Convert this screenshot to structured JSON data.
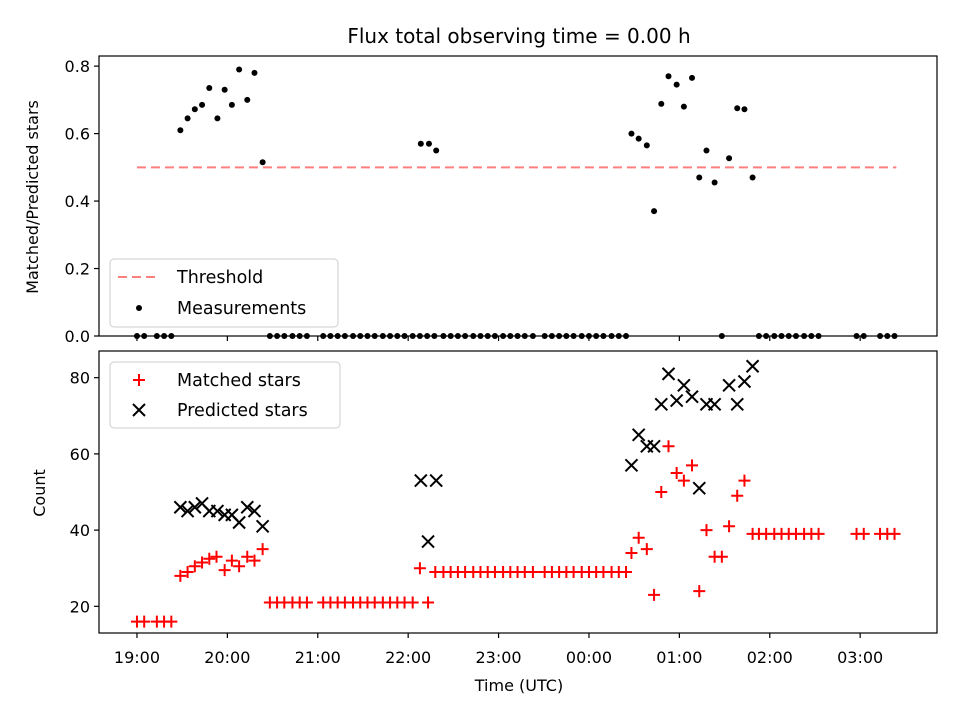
{
  "chart_data": {
    "title": "Flux total observing time = 0.00 h",
    "xlabel": "Time (UTC)",
    "x_ticks": [
      "19:00",
      "20:00",
      "21:00",
      "22:00",
      "23:00",
      "00:00",
      "01:00",
      "02:00",
      "03:00"
    ],
    "x_range_hours_from_19": [
      -0.42,
      8.85
    ],
    "top": {
      "type": "scatter",
      "ylabel": "Matched/Predicted stars",
      "ylim": [
        0,
        0.83
      ],
      "y_ticks": [
        "0.0",
        "0.2",
        "0.4",
        "0.6",
        "0.8"
      ],
      "threshold": {
        "name": "Threshold",
        "value": 0.5,
        "x_start": 0.0,
        "x_end": 8.4,
        "color": "#ff7f7f"
      },
      "measurements_name": "Measurements",
      "points": [
        [
          0.0,
          0
        ],
        [
          0.08,
          0
        ],
        [
          0.22,
          0
        ],
        [
          0.3,
          0
        ],
        [
          0.38,
          0
        ],
        [
          0.48,
          0.61
        ],
        [
          0.56,
          0.645
        ],
        [
          0.64,
          0.672
        ],
        [
          0.72,
          0.685
        ],
        [
          0.8,
          0.735
        ],
        [
          0.89,
          0.645
        ],
        [
          0.97,
          0.73
        ],
        [
          1.05,
          0.685
        ],
        [
          1.13,
          0.79
        ],
        [
          1.22,
          0.7
        ],
        [
          1.3,
          0.78
        ],
        [
          1.39,
          0.515
        ],
        [
          1.47,
          0
        ],
        [
          1.55,
          0
        ],
        [
          1.63,
          0
        ],
        [
          1.72,
          0
        ],
        [
          1.8,
          0
        ],
        [
          1.88,
          0
        ],
        [
          2.06,
          0
        ],
        [
          2.14,
          0
        ],
        [
          2.22,
          0
        ],
        [
          2.3,
          0
        ],
        [
          2.39,
          0
        ],
        [
          2.47,
          0
        ],
        [
          2.55,
          0
        ],
        [
          2.63,
          0
        ],
        [
          2.72,
          0
        ],
        [
          2.8,
          0
        ],
        [
          2.88,
          0
        ],
        [
          2.96,
          0
        ],
        [
          3.05,
          0
        ],
        [
          3.13,
          0
        ],
        [
          3.21,
          0
        ],
        [
          3.29,
          0
        ],
        [
          3.14,
          0.57
        ],
        [
          3.23,
          0.57
        ],
        [
          3.31,
          0.55
        ],
        [
          3.39,
          0
        ],
        [
          3.47,
          0
        ],
        [
          3.55,
          0
        ],
        [
          3.63,
          0
        ],
        [
          3.72,
          0
        ],
        [
          3.8,
          0
        ],
        [
          3.88,
          0
        ],
        [
          3.96,
          0
        ],
        [
          4.05,
          0
        ],
        [
          4.13,
          0
        ],
        [
          4.21,
          0
        ],
        [
          4.29,
          0
        ],
        [
          4.38,
          0
        ],
        [
          4.51,
          0
        ],
        [
          4.59,
          0
        ],
        [
          4.67,
          0
        ],
        [
          4.75,
          0
        ],
        [
          4.83,
          0
        ],
        [
          4.92,
          0
        ],
        [
          5.0,
          0
        ],
        [
          5.08,
          0
        ],
        [
          5.16,
          0
        ],
        [
          5.25,
          0
        ],
        [
          5.33,
          0
        ],
        [
          5.41,
          0
        ],
        [
          5.47,
          0.6
        ],
        [
          5.55,
          0.585
        ],
        [
          5.64,
          0.565
        ],
        [
          5.72,
          0.37
        ],
        [
          5.8,
          0.688
        ],
        [
          5.88,
          0.77
        ],
        [
          5.97,
          0.745
        ],
        [
          6.05,
          0.68
        ],
        [
          6.14,
          0.765
        ],
        [
          6.22,
          0.47
        ],
        [
          6.3,
          0.55
        ],
        [
          6.39,
          0.455
        ],
        [
          6.47,
          0
        ],
        [
          6.55,
          0.527
        ],
        [
          6.64,
          0.675
        ],
        [
          6.72,
          0.672
        ],
        [
          6.81,
          0.47
        ],
        [
          6.88,
          0
        ],
        [
          6.96,
          0
        ],
        [
          7.05,
          0
        ],
        [
          7.13,
          0
        ],
        [
          7.21,
          0
        ],
        [
          7.29,
          0
        ],
        [
          7.38,
          0
        ],
        [
          7.46,
          0
        ],
        [
          7.54,
          0
        ],
        [
          7.96,
          0
        ],
        [
          8.04,
          0
        ],
        [
          8.22,
          0
        ],
        [
          8.3,
          0
        ],
        [
          8.38,
          0
        ]
      ]
    },
    "bottom": {
      "type": "scatter",
      "ylabel": "Count",
      "ylim": [
        13,
        87
      ],
      "y_ticks": [
        "20",
        "40",
        "60",
        "80"
      ],
      "series": [
        {
          "name": "Matched stars",
          "color": "#ff0000",
          "marker": "plus",
          "points": [
            [
              0.0,
              16
            ],
            [
              0.08,
              16
            ],
            [
              0.22,
              16
            ],
            [
              0.3,
              16
            ],
            [
              0.38,
              16
            ],
            [
              0.48,
              28
            ],
            [
              0.56,
              29
            ],
            [
              0.64,
              30.5
            ],
            [
              0.72,
              31.5
            ],
            [
              0.8,
              32.5
            ],
            [
              0.88,
              33
            ],
            [
              0.97,
              29.5
            ],
            [
              1.05,
              32
            ],
            [
              1.13,
              30.5
            ],
            [
              1.22,
              33
            ],
            [
              1.3,
              32
            ],
            [
              1.39,
              35
            ],
            [
              1.47,
              21
            ],
            [
              1.55,
              21
            ],
            [
              1.63,
              21
            ],
            [
              1.72,
              21
            ],
            [
              1.8,
              21
            ],
            [
              1.88,
              21
            ],
            [
              2.06,
              21
            ],
            [
              2.14,
              21
            ],
            [
              2.22,
              21
            ],
            [
              2.3,
              21
            ],
            [
              2.39,
              21
            ],
            [
              2.47,
              21
            ],
            [
              2.55,
              21
            ],
            [
              2.63,
              21
            ],
            [
              2.72,
              21
            ],
            [
              2.8,
              21
            ],
            [
              2.88,
              21
            ],
            [
              2.96,
              21
            ],
            [
              3.05,
              21
            ],
            [
              3.13,
              30
            ],
            [
              3.22,
              21
            ],
            [
              3.3,
              29
            ],
            [
              3.39,
              29
            ],
            [
              3.47,
              29
            ],
            [
              3.55,
              29
            ],
            [
              3.63,
              29
            ],
            [
              3.72,
              29
            ],
            [
              3.8,
              29
            ],
            [
              3.88,
              29
            ],
            [
              3.96,
              29
            ],
            [
              4.05,
              29
            ],
            [
              4.13,
              29
            ],
            [
              4.21,
              29
            ],
            [
              4.29,
              29
            ],
            [
              4.38,
              29
            ],
            [
              4.51,
              29
            ],
            [
              4.59,
              29
            ],
            [
              4.67,
              29
            ],
            [
              4.75,
              29
            ],
            [
              4.83,
              29
            ],
            [
              4.92,
              29
            ],
            [
              5.0,
              29
            ],
            [
              5.08,
              29
            ],
            [
              5.16,
              29
            ],
            [
              5.25,
              29
            ],
            [
              5.33,
              29
            ],
            [
              5.41,
              29
            ],
            [
              5.47,
              34
            ],
            [
              5.55,
              38
            ],
            [
              5.64,
              35
            ],
            [
              5.72,
              23
            ],
            [
              5.8,
              50
            ],
            [
              5.88,
              62
            ],
            [
              5.97,
              55
            ],
            [
              6.05,
              53
            ],
            [
              6.14,
              57
            ],
            [
              6.22,
              24
            ],
            [
              6.3,
              40
            ],
            [
              6.39,
              33
            ],
            [
              6.47,
              33
            ],
            [
              6.55,
              41
            ],
            [
              6.64,
              49
            ],
            [
              6.72,
              53
            ],
            [
              6.81,
              39
            ],
            [
              6.88,
              39
            ],
            [
              6.96,
              39
            ],
            [
              7.05,
              39
            ],
            [
              7.13,
              39
            ],
            [
              7.21,
              39
            ],
            [
              7.29,
              39
            ],
            [
              7.38,
              39
            ],
            [
              7.46,
              39
            ],
            [
              7.54,
              39
            ],
            [
              7.96,
              39
            ],
            [
              8.04,
              39
            ],
            [
              8.22,
              39
            ],
            [
              8.3,
              39
            ],
            [
              8.38,
              39
            ]
          ]
        },
        {
          "name": "Predicted stars",
          "color": "#000000",
          "marker": "x",
          "points": [
            [
              0.48,
              46
            ],
            [
              0.56,
              45
            ],
            [
              0.64,
              46
            ],
            [
              0.72,
              47
            ],
            [
              0.8,
              45
            ],
            [
              0.89,
              45
            ],
            [
              0.97,
              44
            ],
            [
              1.05,
              44
            ],
            [
              1.13,
              42
            ],
            [
              1.22,
              46
            ],
            [
              1.3,
              45
            ],
            [
              1.39,
              41
            ],
            [
              3.14,
              53
            ],
            [
              3.22,
              37
            ],
            [
              3.31,
              53
            ],
            [
              5.47,
              57
            ],
            [
              5.55,
              65
            ],
            [
              5.64,
              62
            ],
            [
              5.72,
              62
            ],
            [
              5.8,
              73
            ],
            [
              5.88,
              81
            ],
            [
              5.97,
              74
            ],
            [
              6.05,
              78
            ],
            [
              6.14,
              75
            ],
            [
              6.22,
              51
            ],
            [
              6.3,
              73
            ],
            [
              6.39,
              73
            ],
            [
              6.55,
              78
            ],
            [
              6.64,
              73
            ],
            [
              6.72,
              79
            ],
            [
              6.81,
              83
            ]
          ]
        }
      ]
    }
  }
}
